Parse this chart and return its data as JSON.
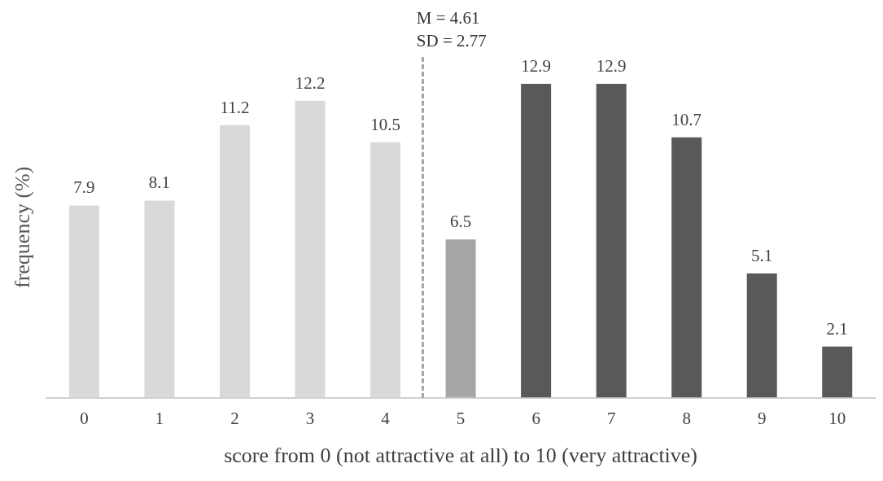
{
  "chart_data": {
    "type": "bar",
    "xlabel": "score from 0 (not attractive at all) to 10 (very attractive)",
    "ylabel": "frequency (%)",
    "categories": [
      "0",
      "1",
      "2",
      "3",
      "4",
      "5",
      "6",
      "7",
      "8",
      "9",
      "10"
    ],
    "values": [
      7.9,
      8.1,
      11.2,
      12.2,
      10.5,
      6.5,
      12.9,
      12.9,
      10.7,
      5.1,
      2.1
    ],
    "colors": [
      "#d9d9d9",
      "#d9d9d9",
      "#d9d9d9",
      "#d9d9d9",
      "#d9d9d9",
      "#a6a6a6",
      "#595959",
      "#595959",
      "#595959",
      "#595959",
      "#595959"
    ],
    "data_labels": true,
    "legend": false,
    "tick_labels": "x",
    "annotations": [
      "M = 4.61",
      "SD = 2.77"
    ]
  }
}
